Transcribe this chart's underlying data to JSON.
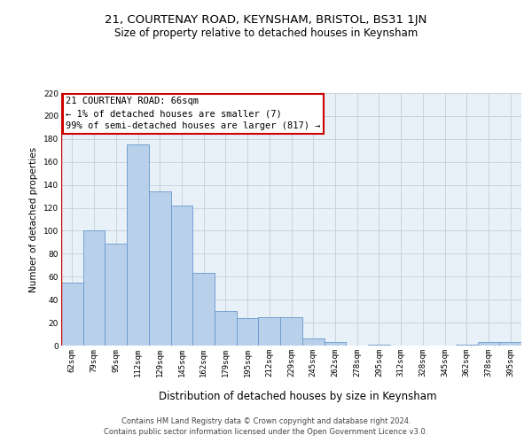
{
  "title1": "21, COURTENAY ROAD, KEYNSHAM, BRISTOL, BS31 1JN",
  "title2": "Size of property relative to detached houses in Keynsham",
  "xlabel": "Distribution of detached houses by size in Keynsham",
  "ylabel": "Number of detached properties",
  "categories": [
    "62sqm",
    "79sqm",
    "95sqm",
    "112sqm",
    "129sqm",
    "145sqm",
    "162sqm",
    "179sqm",
    "195sqm",
    "212sqm",
    "229sqm",
    "245sqm",
    "262sqm",
    "278sqm",
    "295sqm",
    "312sqm",
    "328sqm",
    "345sqm",
    "362sqm",
    "378sqm",
    "395sqm"
  ],
  "values": [
    55,
    100,
    89,
    175,
    134,
    122,
    63,
    30,
    24,
    25,
    25,
    6,
    3,
    0,
    1,
    0,
    0,
    0,
    1,
    3,
    3
  ],
  "bar_color": "#b8d0ea",
  "bar_edge_color": "#6699cc",
  "annotation_text": "21 COURTENAY ROAD: 66sqm\n← 1% of detached houses are smaller (7)\n99% of semi-detached houses are larger (817) →",
  "annotation_box_color": "#ffffff",
  "annotation_box_edge_color": "#cc0000",
  "footer1": "Contains HM Land Registry data © Crown copyright and database right 2024.",
  "footer2": "Contains public sector information licensed under the Open Government Licence v3.0.",
  "bg_color": "#ffffff",
  "plot_bg_color": "#e8f0f8",
  "grid_color": "#c8d4e0",
  "ylim": [
    0,
    220
  ],
  "yticks": [
    0,
    20,
    40,
    60,
    80,
    100,
    120,
    140,
    160,
    180,
    200,
    220
  ],
  "title1_fontsize": 9.5,
  "title2_fontsize": 8.5,
  "xlabel_fontsize": 8.5,
  "ylabel_fontsize": 7.5,
  "tick_fontsize": 6.5,
  "footer_fontsize": 6.0,
  "annot_fontsize": 7.5
}
